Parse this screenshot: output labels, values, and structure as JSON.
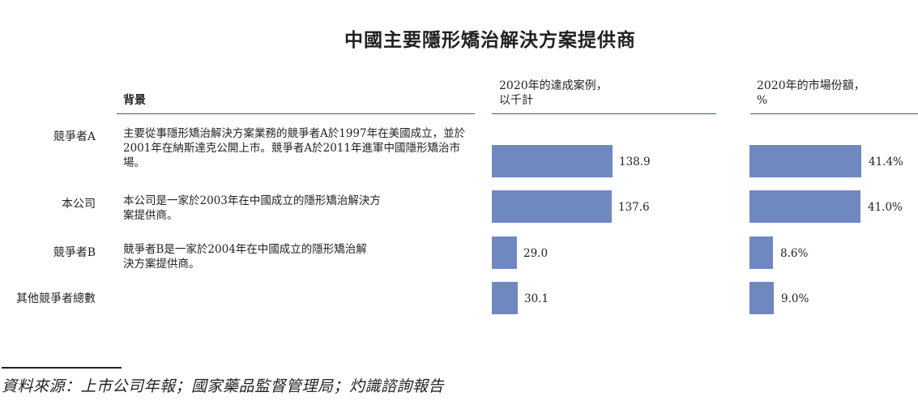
{
  "title": "中國主要隱形矯治解決方案提供商",
  "headers": {
    "background": "背景",
    "cases": "2020年的達成案例，\n以千計",
    "share": "2020年的市場份額，\n%"
  },
  "rows": [
    {
      "label": "競爭者A",
      "desc": "主要從事隱形矯治解決方案業務的競爭者A於1997年在美國成立，並於2001年在納斯達克公開上市。競爭者A於2011年進軍中國隱形矯治市場。",
      "cases_label": "138.9",
      "share_label": "41.4%"
    },
    {
      "label": "本公司",
      "desc": "本公司是一家於2003年在中國成立的隱形矯治解決方案提供商。",
      "cases_label": "137.6",
      "share_label": "41.0%"
    },
    {
      "label": "競爭者B",
      "desc": "競爭者B是一家於2004年在中國成立的隱形矯治解決方案提供商。",
      "cases_label": "29.0",
      "share_label": "8.6%"
    },
    {
      "label": "其他競爭者總數",
      "desc": "",
      "cases_label": "30.1",
      "share_label": "9.0%"
    }
  ],
  "source": "資料來源：上市公司年報；國家藥品監督管理局；灼識諮詢報告",
  "colors": {
    "bar": "#6f88bf",
    "rule": "#3d5a8c"
  },
  "chart_data": [
    {
      "type": "bar",
      "orientation": "horizontal",
      "categories": [
        "競爭者A",
        "本公司",
        "競爭者B",
        "其他競爭者總數"
      ],
      "values": [
        138.9,
        137.6,
        29.0,
        30.1
      ],
      "title": "2020年的達成案例，以千計"
    },
    {
      "type": "bar",
      "orientation": "horizontal",
      "categories": [
        "競爭者A",
        "本公司",
        "競爭者B",
        "其他競爭者總數"
      ],
      "values": [
        41.4,
        41.0,
        8.6,
        9.0
      ],
      "title": "2020年的市場份額，%"
    }
  ]
}
